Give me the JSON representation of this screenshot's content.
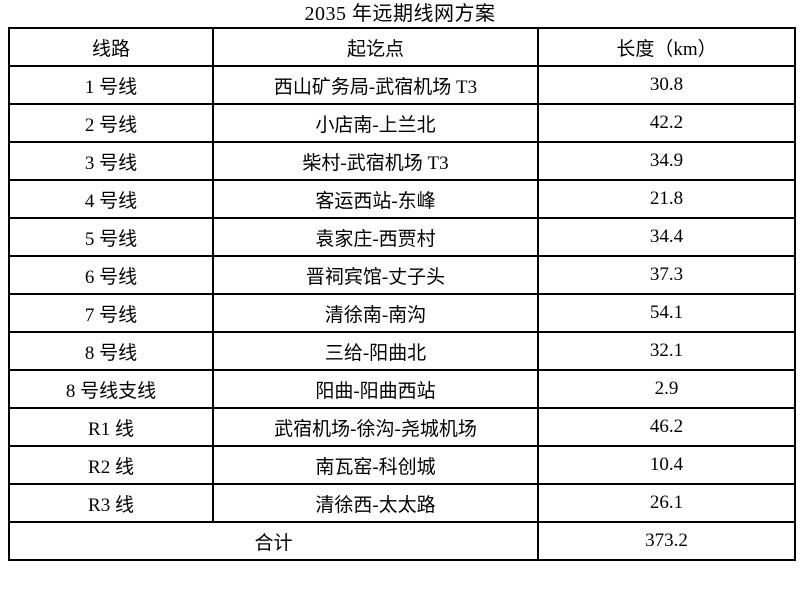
{
  "page": {
    "title": "2035 年远期线网方案"
  },
  "table": {
    "columns": [
      "线路",
      "起讫点",
      "长度（km）"
    ],
    "rows": [
      {
        "line": "1 号线",
        "route": "西山矿务局-武宿机场 T3",
        "length_km": "30.8"
      },
      {
        "line": "2 号线",
        "route": "小店南-上兰北",
        "length_km": "42.2"
      },
      {
        "line": "3 号线",
        "route": "柴村-武宿机场 T3",
        "length_km": "34.9"
      },
      {
        "line": "4 号线",
        "route": "客运西站-东峰",
        "length_km": "21.8"
      },
      {
        "line": "5 号线",
        "route": "袁家庄-西贾村",
        "length_km": "34.4"
      },
      {
        "line": "6 号线",
        "route": "晋祠宾馆-丈子头",
        "length_km": "37.3"
      },
      {
        "line": "7 号线",
        "route": "清徐南-南沟",
        "length_km": "54.1"
      },
      {
        "line": "8 号线",
        "route": "三给-阳曲北",
        "length_km": "32.1"
      },
      {
        "line": "8 号线支线",
        "route": "阳曲-阳曲西站",
        "length_km": "2.9"
      },
      {
        "line": "R1 线",
        "route": "武宿机场-徐沟-尧城机场",
        "length_km": "46.2"
      },
      {
        "line": "R2 线",
        "route": "南瓦窑-科创城",
        "length_km": "10.4"
      },
      {
        "line": "R3 线",
        "route": "清徐西-太太路",
        "length_km": "26.1"
      }
    ],
    "total": {
      "label": "合计",
      "value": "373.2"
    }
  }
}
